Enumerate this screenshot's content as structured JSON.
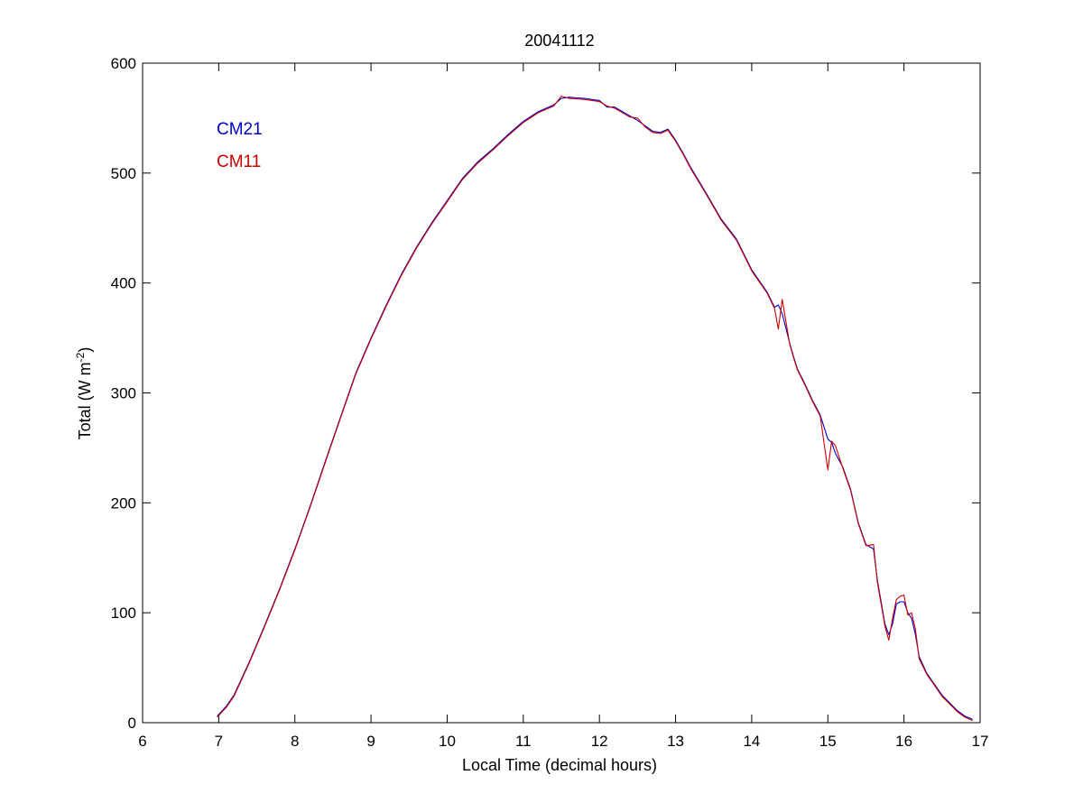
{
  "chart_data": {
    "type": "line",
    "title": "20041112",
    "xlabel": "Local Time (decimal hours)",
    "ylabel": {
      "main": "Total (W m",
      "superscript": "-2",
      "suffix": ")"
    },
    "xlim": [
      6,
      17
    ],
    "ylim": [
      0,
      600
    ],
    "xticks": [
      "6",
      "7",
      "8",
      "9",
      "10",
      "11",
      "12",
      "13",
      "14",
      "15",
      "16",
      "17"
    ],
    "yticks": [
      "0",
      "100",
      "200",
      "300",
      "400",
      "500",
      "600"
    ],
    "grid": false,
    "legend_position": "top-left",
    "series": [
      {
        "name": "CM21",
        "color": "#0000cc",
        "x": [
          6.98,
          7.1,
          7.2,
          7.4,
          7.6,
          7.8,
          8.0,
          8.2,
          8.4,
          8.6,
          8.8,
          9.0,
          9.2,
          9.4,
          9.6,
          9.8,
          10.0,
          10.2,
          10.4,
          10.6,
          10.8,
          11.0,
          11.2,
          11.4,
          11.5,
          11.6,
          11.8,
          12.0,
          12.1,
          12.2,
          12.3,
          12.4,
          12.5,
          12.6,
          12.7,
          12.8,
          12.9,
          13.0,
          13.1,
          13.2,
          13.4,
          13.6,
          13.8,
          13.9,
          14.0,
          14.1,
          14.2,
          14.3,
          14.35,
          14.4,
          14.5,
          14.55,
          14.6,
          14.7,
          14.8,
          14.9,
          15.0,
          15.05,
          15.1,
          15.2,
          15.3,
          15.4,
          15.5,
          15.6,
          15.65,
          15.7,
          15.75,
          15.8,
          15.85,
          15.9,
          15.95,
          16.0,
          16.05,
          16.1,
          16.15,
          16.2,
          16.3,
          16.4,
          16.5,
          16.6,
          16.7,
          16.8,
          16.9
        ],
        "values": [
          6,
          15,
          25,
          55,
          88,
          122,
          158,
          197,
          238,
          278,
          318,
          350,
          380,
          408,
          433,
          455,
          475,
          495,
          510,
          522,
          535,
          547,
          556,
          562,
          568,
          569,
          568,
          566,
          560,
          560,
          556,
          552,
          548,
          543,
          538,
          537,
          540,
          530,
          518,
          505,
          482,
          458,
          440,
          426,
          412,
          402,
          392,
          378,
          380,
          372,
          345,
          333,
          322,
          308,
          293,
          280,
          258,
          255,
          245,
          232,
          212,
          182,
          162,
          158,
          130,
          110,
          90,
          80,
          90,
          108,
          110,
          110,
          100,
          95,
          80,
          60,
          45,
          35,
          25,
          18,
          11,
          6,
          3
        ]
      },
      {
        "name": "CM11",
        "color": "#cc0000",
        "x": [
          6.98,
          7.1,
          7.2,
          7.4,
          7.6,
          7.8,
          8.0,
          8.2,
          8.4,
          8.6,
          8.8,
          9.0,
          9.2,
          9.4,
          9.6,
          9.8,
          10.0,
          10.2,
          10.4,
          10.6,
          10.8,
          11.0,
          11.2,
          11.4,
          11.5,
          11.6,
          11.8,
          12.0,
          12.1,
          12.2,
          12.3,
          12.4,
          12.5,
          12.6,
          12.7,
          12.8,
          12.9,
          13.0,
          13.1,
          13.2,
          13.4,
          13.6,
          13.8,
          13.9,
          14.0,
          14.1,
          14.2,
          14.3,
          14.35,
          14.4,
          14.5,
          14.55,
          14.6,
          14.7,
          14.8,
          14.9,
          15.0,
          15.05,
          15.1,
          15.2,
          15.3,
          15.4,
          15.5,
          15.6,
          15.65,
          15.7,
          15.75,
          15.8,
          15.85,
          15.9,
          15.95,
          16.0,
          16.05,
          16.1,
          16.15,
          16.2,
          16.3,
          16.4,
          16.5,
          16.6,
          16.7,
          16.8,
          16.9
        ],
        "values": [
          5,
          14,
          24,
          54,
          87,
          121,
          157,
          196,
          237,
          277,
          317,
          349,
          379,
          407,
          432,
          454,
          474,
          494,
          509,
          521,
          534,
          546,
          555,
          561,
          570,
          568,
          567,
          565,
          561,
          559,
          555,
          551,
          550,
          542,
          537,
          536,
          539,
          529,
          517,
          504,
          481,
          457,
          439,
          425,
          411,
          401,
          391,
          377,
          358,
          385,
          344,
          332,
          321,
          307,
          292,
          279,
          230,
          256,
          252,
          231,
          211,
          181,
          161,
          162,
          128,
          108,
          88,
          75,
          95,
          112,
          115,
          116,
          98,
          100,
          85,
          58,
          44,
          34,
          24,
          17,
          10,
          5,
          2
        ]
      }
    ]
  }
}
